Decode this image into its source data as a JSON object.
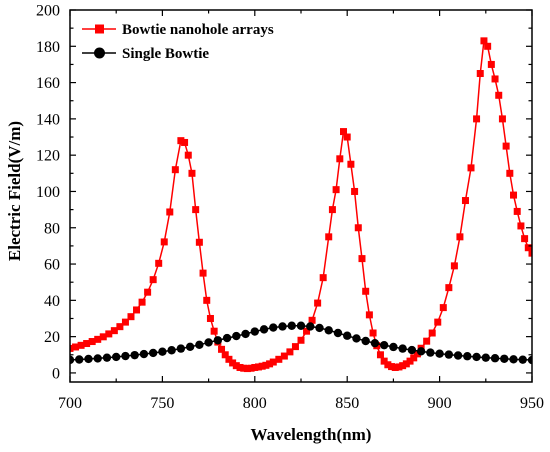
{
  "chart_data": {
    "type": "line",
    "xlabel": "Wavelength(nm)",
    "ylabel": "Electric Field(V/m)",
    "xlim": [
      700,
      950
    ],
    "ylim": [
      -5,
      200
    ],
    "xticks": [
      700,
      750,
      800,
      850,
      900,
      950
    ],
    "yticks": [
      0,
      20,
      40,
      60,
      80,
      100,
      120,
      140,
      160,
      180,
      200
    ],
    "grid": false,
    "legend_position": "top-left",
    "series": [
      {
        "name": "Bowtie nanohole arrays",
        "color": "#ff0000",
        "marker": "square",
        "x": [
          700,
          703,
          706,
          709,
          712,
          715,
          718,
          721,
          724,
          727,
          730,
          733,
          736,
          739,
          742,
          745,
          748,
          751,
          754,
          757,
          760,
          762,
          764,
          766,
          768,
          770,
          772,
          774,
          776,
          778,
          780,
          782,
          784,
          786,
          788,
          790,
          792,
          794,
          796,
          798,
          800,
          802,
          804,
          806,
          808,
          810,
          813,
          816,
          819,
          822,
          825,
          828,
          831,
          834,
          837,
          840,
          842,
          844,
          846,
          848,
          850,
          852,
          854,
          856,
          858,
          860,
          862,
          864,
          866,
          868,
          870,
          872,
          874,
          876,
          878,
          880,
          882,
          884,
          886,
          888,
          890,
          893,
          896,
          899,
          902,
          905,
          908,
          911,
          914,
          917,
          920,
          922,
          924,
          926,
          928,
          930,
          932,
          934,
          936,
          938,
          940,
          942,
          944,
          946,
          948,
          950
        ],
        "y": [
          13.5,
          14.3,
          15.2,
          16.2,
          17.3,
          18.5,
          19.9,
          21.5,
          23.3,
          25.5,
          28,
          31,
          34.7,
          39,
          44.5,
          51.4,
          60.4,
          72.2,
          88.7,
          112,
          128,
          127,
          120,
          110,
          90,
          72,
          55,
          40,
          30,
          23,
          17,
          13,
          10,
          7.5,
          5.5,
          4,
          3,
          2.6,
          2.4,
          2.6,
          3,
          3.3,
          3.7,
          4.2,
          5,
          6,
          7.5,
          9.3,
          11.6,
          14.5,
          18,
          23,
          29,
          38.5,
          52.5,
          75,
          90,
          101,
          118,
          133,
          130,
          115,
          100,
          80,
          63,
          45,
          32,
          22,
          15,
          10,
          6.5,
          4.5,
          3.5,
          3,
          3.3,
          4,
          5,
          6.5,
          8.3,
          10.5,
          13.6,
          17.5,
          22,
          28,
          36,
          47,
          59,
          75,
          95,
          113,
          140,
          165,
          183,
          180,
          170,
          162,
          153,
          140,
          125,
          110,
          98,
          89,
          81,
          74,
          69,
          66
        ]
      },
      {
        "name": "Single Bowtie",
        "color": "#000000",
        "marker": "circle",
        "x": [
          700,
          705,
          710,
          715,
          720,
          725,
          730,
          735,
          740,
          745,
          750,
          755,
          760,
          765,
          770,
          775,
          780,
          785,
          790,
          795,
          800,
          805,
          810,
          815,
          820,
          825,
          830,
          835,
          840,
          845,
          850,
          855,
          860,
          865,
          870,
          875,
          880,
          885,
          890,
          895,
          900,
          905,
          910,
          915,
          920,
          925,
          930,
          935,
          940,
          945,
          950
        ],
        "y": [
          7.2,
          7.4,
          7.7,
          8,
          8.4,
          8.8,
          9.3,
          9.8,
          10.4,
          11,
          11.7,
          12.5,
          13.4,
          14.4,
          15.5,
          16.8,
          18,
          19.2,
          20.3,
          21.5,
          22.8,
          24,
          25,
          25.6,
          26,
          26,
          25.6,
          24.8,
          23.5,
          22,
          20.5,
          19,
          17.6,
          16.4,
          15.3,
          14.3,
          13.4,
          12.6,
          11.9,
          11.2,
          10.6,
          10.1,
          9.6,
          9.2,
          8.8,
          8.4,
          8.1,
          7.8,
          7.5,
          7.3,
          7.1
        ]
      }
    ]
  }
}
